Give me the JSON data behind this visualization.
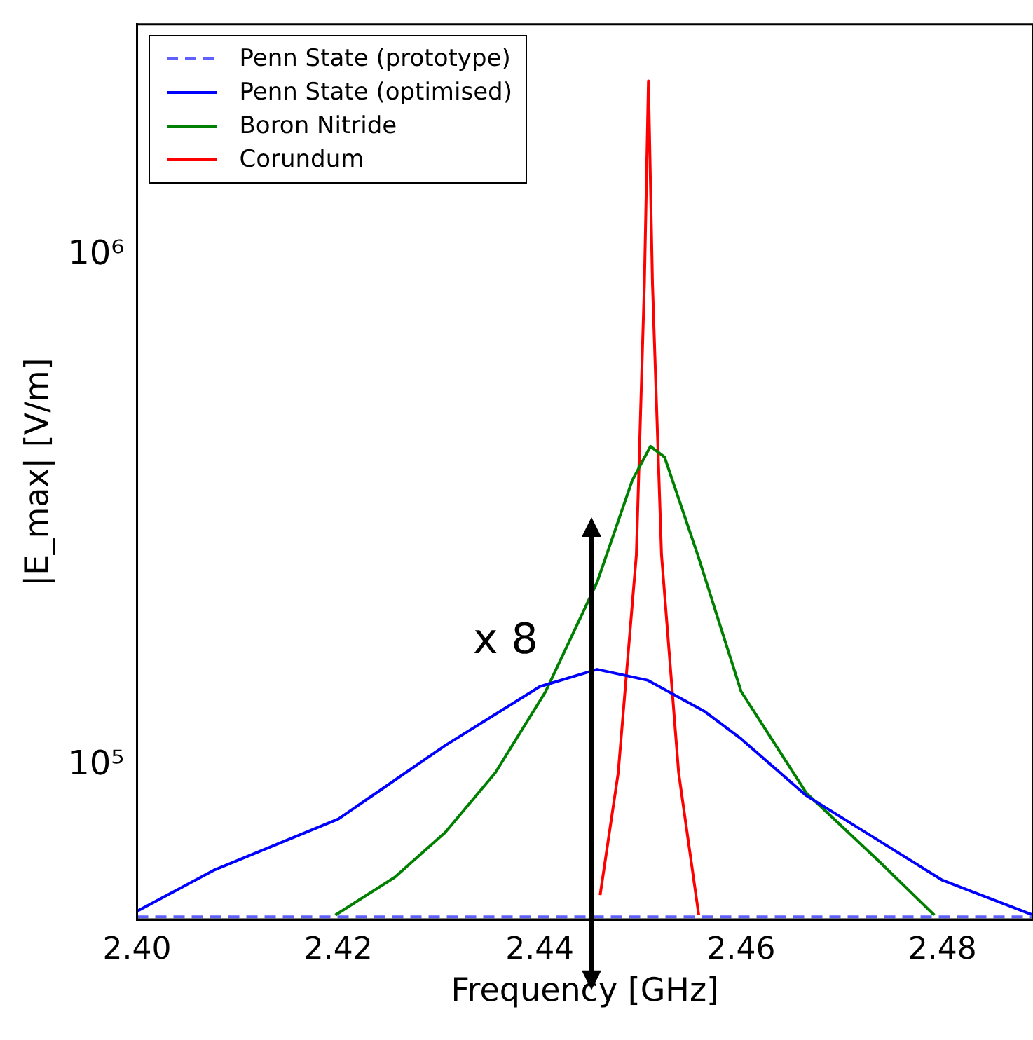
{
  "chart_data": {
    "type": "line",
    "xlabel": "Frequency [GHz]",
    "ylabel": "|E_max| [V/m]",
    "log": "y",
    "xlim": [
      2.4,
      2.489
    ],
    "xticks": [
      {
        "value": 2.4,
        "label": "2.40"
      },
      {
        "value": 2.42,
        "label": "2.42"
      },
      {
        "value": 2.44,
        "label": "2.44"
      },
      {
        "value": 2.46,
        "label": "2.46"
      },
      {
        "value": 2.48,
        "label": "2.48"
      }
    ],
    "ylim": [
      50000,
      2840000
    ],
    "yticks": [
      {
        "value": 100000,
        "label": "10⁵"
      },
      {
        "value": 1000000,
        "label": "10⁶"
      }
    ],
    "legend": "top left",
    "grid": false,
    "marker": "none",
    "annotations": [
      "x 8"
    ],
    "series": [
      {
        "name": "Penn State (prototype)",
        "color": "#6060ff",
        "line_style": "dashed",
        "x": [
          2.4,
          2.489
        ],
        "values": [
          50600,
          50600
        ]
      },
      {
        "name": "Penn State (optimised)",
        "color": "#0000ff",
        "line_style": "solid",
        "x": [
          2.4,
          2.4076,
          2.42,
          2.4306,
          2.44,
          2.4457,
          2.4507,
          2.4564,
          2.46,
          2.4665,
          2.48,
          2.489
        ],
        "values": [
          51900,
          62400,
          78700,
          109600,
          143000,
          154600,
          147200,
          127800,
          113000,
          87400,
          59700,
          51000
        ]
      },
      {
        "name": "Boron Nitride",
        "color": "#008000",
        "line_style": "solid",
        "x": [
          2.4197,
          2.4256,
          2.4306,
          2.4356,
          2.4406,
          2.4457,
          2.4492,
          2.451,
          2.4524,
          2.4557,
          2.46,
          2.4665,
          2.4737,
          2.4792
        ],
        "values": [
          51000,
          60500,
          74000,
          97000,
          140000,
          229000,
          363000,
          423000,
          403000,
          259000,
          140000,
          88400,
          65000,
          51000
        ]
      },
      {
        "name": "Corundum",
        "color": "#ff0000",
        "line_style": "solid",
        "x": [
          2.446,
          2.4478,
          2.4496,
          2.4504,
          2.4508,
          2.4512,
          2.4521,
          2.4538,
          2.4558
        ],
        "values": [
          55800,
          97000,
          259000,
          884000,
          2200000,
          884000,
          259000,
          97000,
          51000
        ]
      }
    ]
  }
}
